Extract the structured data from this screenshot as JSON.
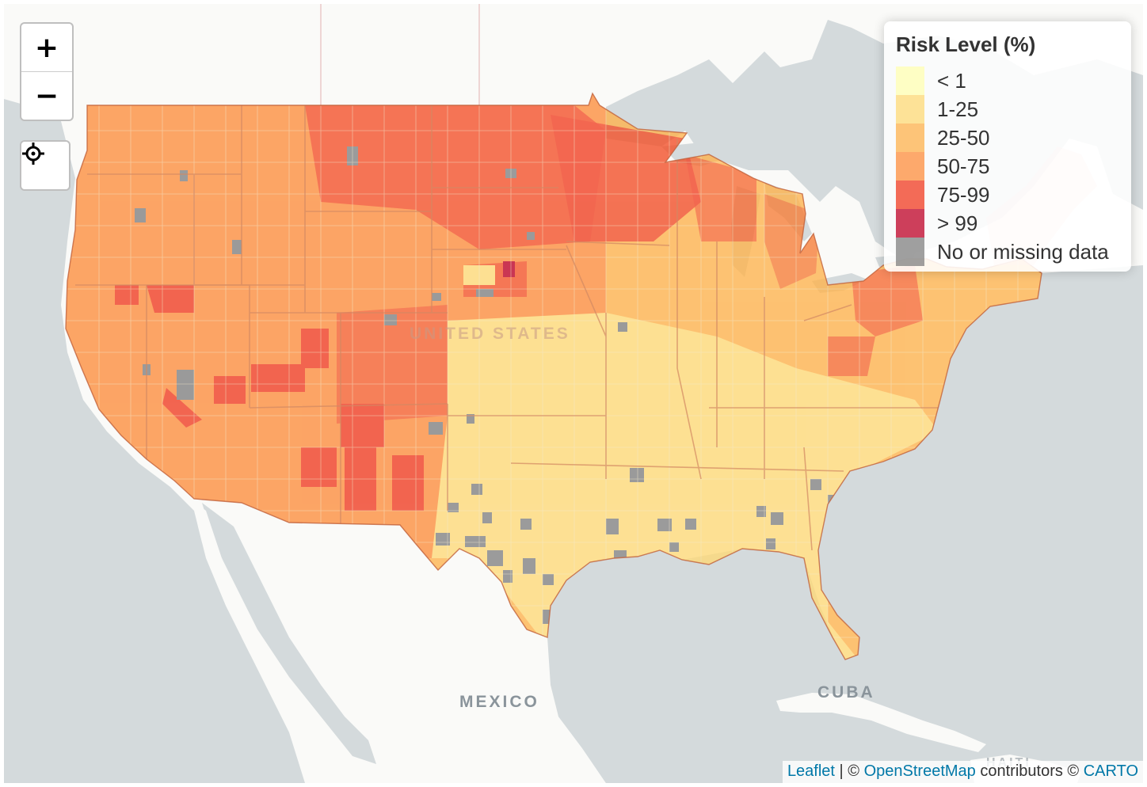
{
  "map": {
    "base_colors": {
      "water": "#d4dadc",
      "land": "#fafaf8",
      "border": "#cfcfcf"
    },
    "place_labels": [
      "MEXICO",
      "CUBA",
      "UNITED STATES",
      "HAITI"
    ],
    "us_overlay_opacity": 0.75,
    "palette": [
      "#ffffb2",
      "#fed976",
      "#feb24c",
      "#fd8d3c",
      "#f03b20",
      "#bd0026",
      "#808080"
    ]
  },
  "controls": {
    "zoom_in_label": "+",
    "zoom_out_label": "−",
    "locate_icon": "crosshair-icon"
  },
  "legend": {
    "title": "Risk Level (%)",
    "items": [
      {
        "label": "< 1",
        "color": "#ffffb2"
      },
      {
        "label": "1-25",
        "color": "#fed976"
      },
      {
        "label": "25-50",
        "color": "#feb24c"
      },
      {
        "label": "50-75",
        "color": "#fd8d3c"
      },
      {
        "label": "75-99",
        "color": "#f03b20"
      },
      {
        "label": "> 99",
        "color": "#bd0026"
      },
      {
        "label": "No or missing data",
        "color": "#808080"
      }
    ]
  },
  "attribution": {
    "leaflet": "Leaflet",
    "sep1": " | © ",
    "osm": "OpenStreetMap",
    "sep2": " contributors © ",
    "carto": "CARTO"
  }
}
